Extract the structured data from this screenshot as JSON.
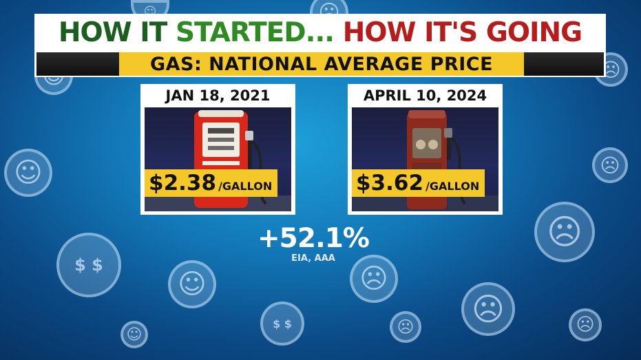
{
  "headline": {
    "part1": "HOW IT ",
    "part2": "STARTED... ",
    "part3": "HOW IT'S ",
    "part4": "GOING",
    "color_dark": "#1b5e20",
    "color_green": "#2e8b22",
    "color_red": "#b71c1c"
  },
  "subtitle": "GAS: NATIONAL AVERAGE PRICE",
  "panels": [
    {
      "date": "JAN 18, 2021",
      "price": "$2.38",
      "unit": "/GALLON",
      "pump_color": "#d8281c"
    },
    {
      "date": "APRIL 10, 2024",
      "price": "$3.62",
      "unit": "/GALLON",
      "pump_color": "#8c2a1e"
    }
  ],
  "change": "+52.1%",
  "source": "EIA, AAA",
  "colors": {
    "accent_yellow": "#f5c82a",
    "background_blue": "#1378b8"
  },
  "background_icons": [
    "smile-icon",
    "neutral-face-icon",
    "sad-face-icon",
    "smile-icon",
    "angry-face-icon",
    "sweating-face-icon",
    "money-eyes-face-icon",
    "smile-icon",
    "sad-face-icon",
    "money-eyes-face-icon",
    "angry-face-icon",
    "sad-face-icon",
    "smile-icon",
    "sweating-face-icon",
    "angry-face-icon"
  ]
}
